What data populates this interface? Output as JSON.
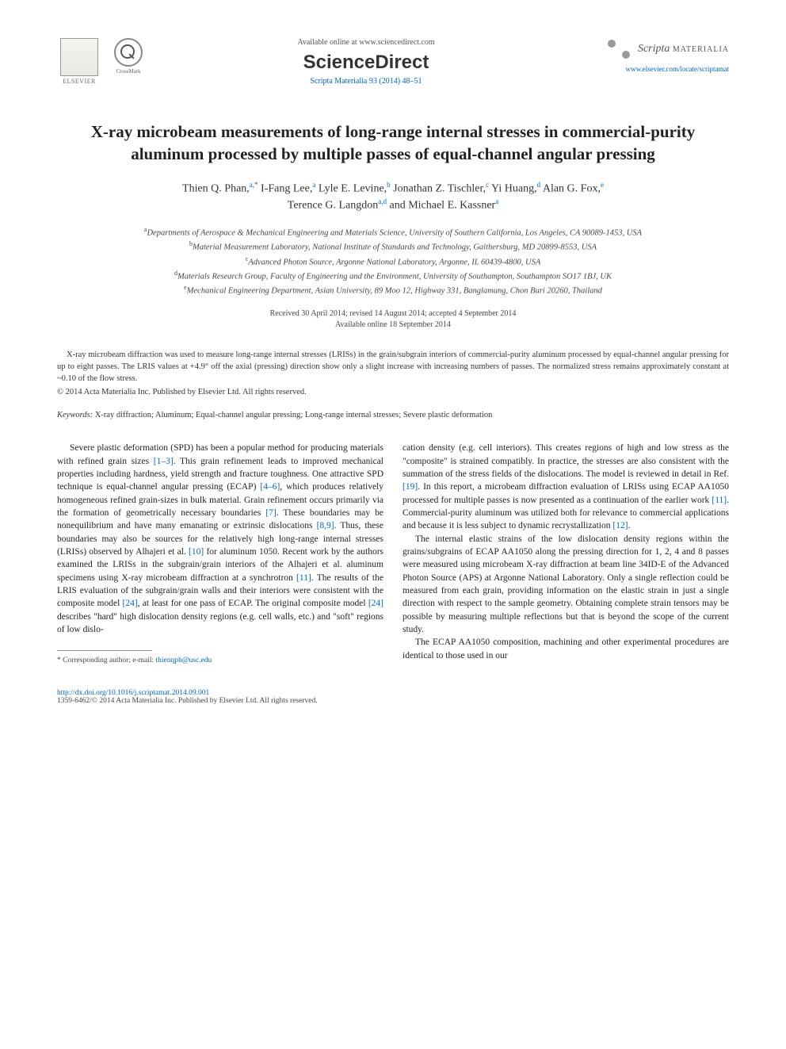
{
  "header": {
    "elsevier_label": "ELSEVIER",
    "crossmark_label": "CrossMark",
    "available_online": "Available online at www.sciencedirect.com",
    "sciencedirect": "ScienceDirect",
    "journal_ref": "Scripta Materialia 93 (2014) 48–51",
    "scripta_name": "Scripta",
    "scripta_sub": "MATERIALIA",
    "journal_url": "www.elsevier.com/locate/scriptamat"
  },
  "title": "X-ray microbeam measurements of long-range internal stresses in commercial-purity aluminum processed by multiple passes of equal-channel angular pressing",
  "authors": {
    "a1_name": "Thien Q. Phan,",
    "a1_sup": "a,*",
    "a2_name": " I-Fang Lee,",
    "a2_sup": "a",
    "a3_name": " Lyle E. Levine,",
    "a3_sup": "b",
    "a4_name": " Jonathan Z. Tischler,",
    "a4_sup": "c",
    "a5_name": " Yi Huang,",
    "a5_sup": "d",
    "a6_name": " Alan G. Fox,",
    "a6_sup": "e",
    "a7_name": "Terence G. Langdon",
    "a7_sup": "a,d",
    "a8_name": " and Michael E. Kassner",
    "a8_sup": "a"
  },
  "affiliations": {
    "a": "Departments of Aerospace & Mechanical Engineering and Materials Science, University of Southern California, Los Angeles, CA 90089-1453, USA",
    "b": "Material Measurement Laboratory, National Institute of Standards and Technology, Gaithersburg, MD 20899-8553, USA",
    "c": "Advanced Photon Source, Argonne National Laboratory, Argonne, IL 60439-4800, USA",
    "d": "Materials Research Group, Faculty of Engineering and the Environment, University of Southampton, Southampton SO17 1BJ, UK",
    "e": "Mechanical Engineering Department, Asian University, 89 Moo 12, Highway 331, Banglamung, Chon Buri 20260, Thailand"
  },
  "dates": {
    "line1": "Received 30 April 2014; revised 14 August 2014; accepted 4 September 2014",
    "line2": "Available online 18 September 2014"
  },
  "abstract": "X-ray microbeam diffraction was used to measure long-range internal stresses (LRISs) in the grain/subgrain interiors of commercial-purity aluminum processed by equal-channel angular pressing for up to eight passes. The LRIS values at +4.9° off the axial (pressing) direction show only a slight increase with increasing numbers of passes. The normalized stress remains approximately constant at ~0.10 of the flow stress.",
  "copyright": "© 2014 Acta Materialia Inc. Published by Elsevier Ltd. All rights reserved.",
  "keywords": {
    "label": "Keywords:",
    "text": " X-ray diffraction; Aluminum; Equal-channel angular pressing; Long-range internal stresses; Severe plastic deformation"
  },
  "body": {
    "left": {
      "p1a": "Severe plastic deformation (SPD) has been a popular method for producing materials with refined grain sizes ",
      "r1": "[1–3]",
      "p1b": ". This grain refinement leads to improved mechanical properties including hardness, yield strength and fracture toughness. One attractive SPD technique is equal-channel angular pressing (ECAP) ",
      "r2": "[4–6]",
      "p1c": ", which produces relatively homogeneous refined grain-sizes in bulk material. Grain refinement occurs primarily via the formation of geometrically necessary boundaries ",
      "r3": "[7]",
      "p1d": ". These boundaries may be nonequilibrium and have many emanating or extrinsic dislocations ",
      "r4": "[8,9]",
      "p1e": ". Thus, these boundaries may also be sources for the relatively high long-range internal stresses (LRISs) observed by Alhajeri et al. ",
      "r5": "[10]",
      "p1f": " for aluminum 1050. Recent work by the authors examined the LRISs in the subgrain/grain interiors of the Alhajeri et al. aluminum specimens using X-ray microbeam diffraction at a synchrotron ",
      "r6": "[11]",
      "p1g": ". The results of the LRIS evaluation of the subgrain/grain walls and their interiors were consistent with the composite model ",
      "r7": "[24]",
      "p1h": ", at least for one pass of ECAP. The original composite model ",
      "r8": "[24]",
      "p1i": " describes \"hard\" high dislocation density regions (e.g. cell walls, etc.) and \"soft\" regions of low dislo-"
    },
    "right": {
      "p1a": "cation density (e.g. cell interiors). This creates regions of high and low stress as the \"composite\" is strained compatibly. In practice, the stresses are also consistent with the summation of the stress fields of the dislocations. The model is reviewed in detail in Ref. ",
      "r1": "[19]",
      "p1b": ". In this report, a microbeam diffraction evaluation of LRISs using ECAP AA1050 processed for multiple passes is now presented as a continuation of the earlier work ",
      "r2": "[11]",
      "p1c": ". Commercial-purity aluminum was utilized both for relevance to commercial applications and because it is less subject to dynamic recrystallization ",
      "r3": "[12]",
      "p1d": ".",
      "p2": "The internal elastic strains of the low dislocation density regions within the grains/subgrains of ECAP AA1050 along the pressing direction for 1, 2, 4 and 8 passes were measured using microbeam X-ray diffraction at beam line 34ID-E of the Advanced Photon Source (APS) at Argonne National Laboratory. Only a single reflection could be measured from each grain, providing information on the elastic strain in just a single direction with respect to the sample geometry. Obtaining complete strain tensors may be possible by measuring multiple reflections but that is beyond the scope of the current study.",
      "p3": "The ECAP AA1050 composition, machining and other experimental procedures are identical to those used in our"
    }
  },
  "footnote": {
    "label": "* Corresponding author; e-mail: ",
    "email": "thienqph@usc.edu"
  },
  "bottom": {
    "doi": "http://dx.doi.org/10.1016/j.scriptamat.2014.09.001",
    "issn": "1359-6462/© 2014 Acta Materialia Inc. Published by Elsevier Ltd. All rights reserved."
  }
}
